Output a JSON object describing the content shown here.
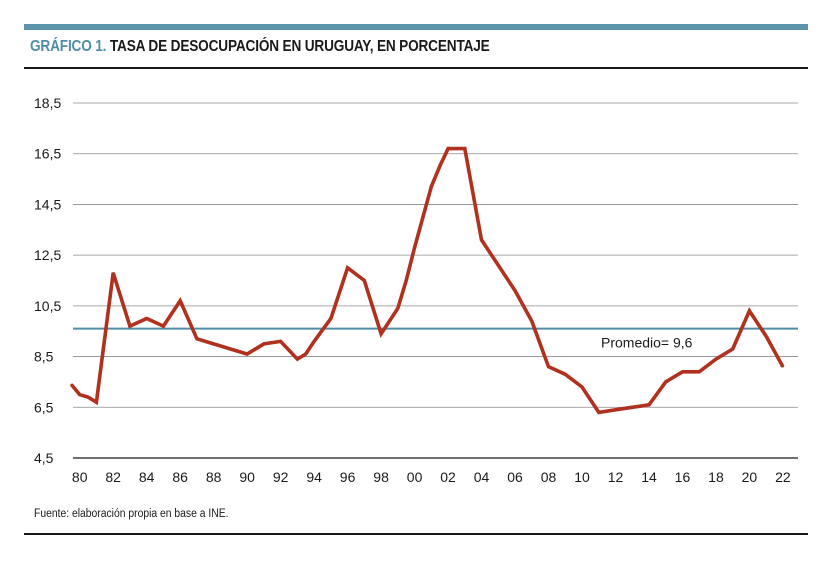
{
  "header": {
    "label": "GRÁFICO 1.",
    "title": "TASA DE DESOCUPACIÓN EN URUGUAY, EN PORCENTAJE"
  },
  "source": "Fuente: elaboración propia en base a INE.",
  "colors": {
    "accent": "#5b93aa",
    "series": "#b0311e",
    "average": "#4f8ea6",
    "grid": "#8c8c8c"
  },
  "chart_data": {
    "type": "line",
    "title": "TASA DE DESOCUPACIÓN EN URUGUAY, EN PORCENTAJE",
    "xlabel": "",
    "ylabel": "",
    "ylim": [
      4.5,
      18.5
    ],
    "yticks": [
      "18,5",
      "16,5",
      "14,5",
      "12,5",
      "10,5",
      "8,5",
      "6,5",
      "4,5"
    ],
    "ytick_values": [
      18.5,
      16.5,
      14.5,
      12.5,
      10.5,
      8.5,
      6.5,
      4.5
    ],
    "xlim": [
      1979.6,
      2022.9
    ],
    "xticks": [
      "80",
      "82",
      "84",
      "86",
      "88",
      "90",
      "92",
      "94",
      "96",
      "98",
      "00",
      "02",
      "04",
      "06",
      "08",
      "10",
      "12",
      "14",
      "16",
      "18",
      "20",
      "22"
    ],
    "xtick_values": [
      1980,
      1982,
      1984,
      1986,
      1988,
      1990,
      1992,
      1994,
      1996,
      1998,
      2000,
      2002,
      2004,
      2006,
      2008,
      2010,
      2012,
      2014,
      2016,
      2018,
      2020,
      2022
    ],
    "grid": true,
    "average": {
      "value": 9.6,
      "label": "Promedio= 9,6"
    },
    "series": [
      {
        "name": "Tasa de desocupación",
        "x": [
          1979.5,
          1980,
          1980.5,
          1981,
          1982,
          1983,
          1984,
          1985,
          1986,
          1987,
          1988,
          1989,
          1990,
          1991,
          1992,
          1993,
          1993.5,
          1994,
          1995,
          1996,
          1997,
          1998,
          1999,
          1999.5,
          2000,
          2001,
          2001.5,
          2002,
          2003,
          2004,
          2005,
          2006,
          2007,
          2008,
          2009,
          2010,
          2011,
          2012,
          2013,
          2014,
          2015,
          2016,
          2017,
          2018,
          2019,
          2020,
          2021,
          2022
        ],
        "values": [
          7.4,
          7.0,
          6.9,
          6.7,
          11.8,
          9.7,
          10.0,
          9.7,
          10.7,
          9.2,
          9.0,
          8.8,
          8.6,
          9.0,
          9.1,
          8.4,
          8.6,
          9.1,
          10.0,
          12.0,
          11.5,
          9.4,
          10.4,
          11.5,
          12.8,
          15.2,
          16.0,
          16.7,
          16.7,
          13.1,
          12.1,
          11.1,
          9.9,
          8.1,
          7.8,
          7.3,
          6.3,
          6.4,
          6.5,
          6.6,
          7.5,
          7.9,
          7.9,
          8.4,
          8.8,
          10.3,
          9.3,
          8.1
        ]
      }
    ]
  }
}
